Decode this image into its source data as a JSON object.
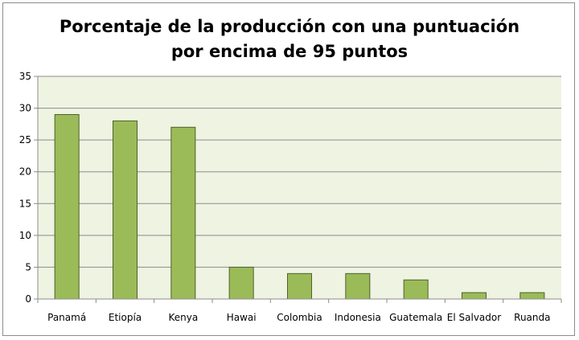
{
  "chart_data": {
    "type": "bar",
    "title": [
      "Porcentaje de la producción con una puntuación",
      "por encima de 95 puntos"
    ],
    "categories": [
      "Panamá",
      "Etiopía",
      "Kenya",
      "Hawai",
      "Colombia",
      "Indonesia",
      "Guatemala",
      "El Salvador",
      "Ruanda"
    ],
    "values": [
      29,
      28,
      27,
      5,
      4,
      4,
      3,
      1,
      1
    ],
    "xlabel": "",
    "ylabel": "",
    "ylim": [
      0,
      35
    ],
    "yticks": [
      0,
      5,
      10,
      15,
      20,
      25,
      30,
      35
    ],
    "grid": true,
    "legend": "none",
    "colors": {
      "bar_fill": "#9bbb59",
      "bar_stroke": "#4f6228",
      "plot_background": "#eef3e2",
      "gridline": "#8c8c8c",
      "axis": "#8c8c8c",
      "text": "#000000"
    }
  }
}
